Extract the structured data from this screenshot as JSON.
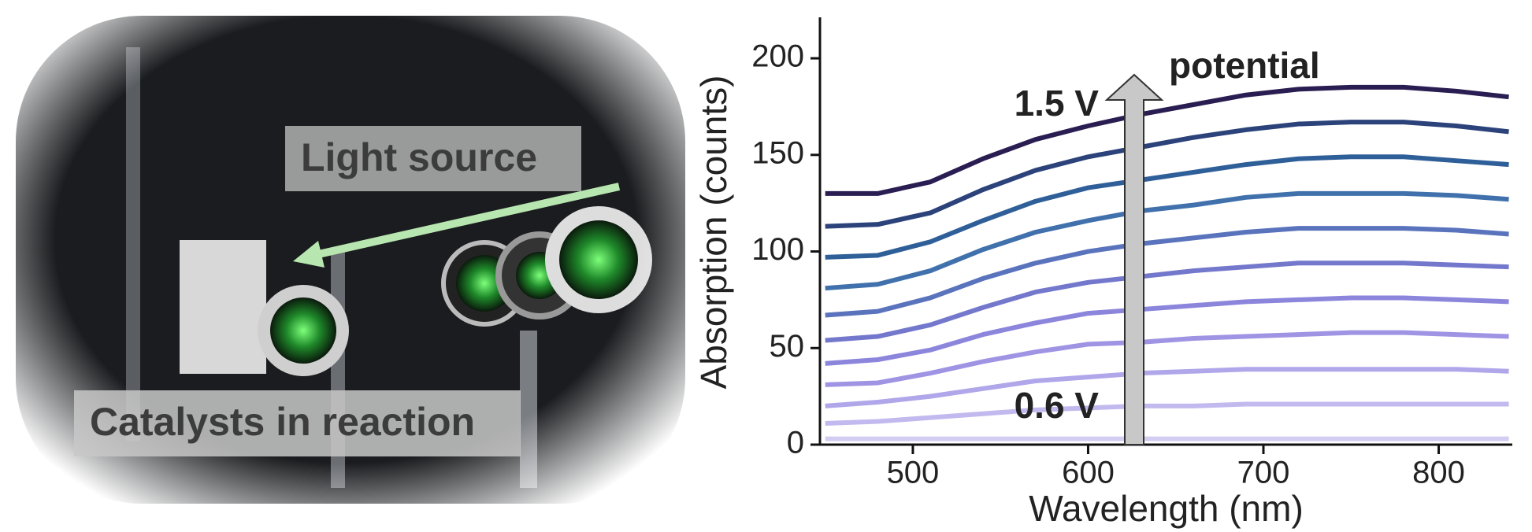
{
  "photo": {
    "labels": [
      "Light source",
      "Catalysts in reaction"
    ]
  },
  "chart_data": {
    "type": "line",
    "xlabel": "Wavelength (nm)",
    "ylabel": "Absorption (counts)",
    "annotations": [
      "potential",
      "1.5 V",
      "0.6 V"
    ],
    "xlim": [
      447,
      842
    ],
    "ylim": [
      0,
      220
    ],
    "xticks": [
      500,
      600,
      700,
      800
    ],
    "yticks": [
      0,
      50,
      100,
      150,
      200
    ],
    "grid": false,
    "x": [
      450,
      480,
      510,
      540,
      570,
      600,
      630,
      660,
      690,
      720,
      750,
      780,
      810,
      840
    ],
    "series": [
      {
        "color": "#d4cdf2",
        "values": [
          3,
          3,
          3,
          3,
          3,
          3,
          3,
          3,
          3,
          3,
          3,
          3,
          3,
          3
        ]
      },
      {
        "color": "#c2b9ee",
        "values": [
          11,
          12,
          14,
          16,
          18,
          19,
          20,
          20,
          21,
          21,
          21,
          21,
          21,
          21
        ]
      },
      {
        "color": "#b0a6ea",
        "values": [
          20,
          22,
          25,
          29,
          33,
          35,
          37,
          38,
          39,
          39,
          39,
          39,
          39,
          38
        ]
      },
      {
        "color": "#9f94e4",
        "values": [
          31,
          32,
          37,
          43,
          48,
          52,
          53,
          55,
          56,
          57,
          58,
          58,
          57,
          56
        ]
      },
      {
        "color": "#8c85dc",
        "values": [
          42,
          44,
          49,
          57,
          63,
          68,
          70,
          72,
          74,
          75,
          76,
          76,
          75,
          74
        ]
      },
      {
        "color": "#7478cc",
        "values": [
          54,
          56,
          62,
          71,
          79,
          84,
          87,
          90,
          92,
          94,
          94,
          94,
          93,
          92
        ]
      },
      {
        "color": "#5a73bd",
        "values": [
          67,
          69,
          76,
          86,
          94,
          100,
          104,
          107,
          110,
          112,
          112,
          112,
          111,
          109
        ]
      },
      {
        "color": "#4071ac",
        "values": [
          81,
          83,
          90,
          101,
          110,
          116,
          121,
          124,
          128,
          130,
          130,
          130,
          129,
          127
        ]
      },
      {
        "color": "#2f5f98",
        "values": [
          97,
          98,
          105,
          116,
          126,
          133,
          137,
          141,
          145,
          148,
          149,
          149,
          147,
          145
        ]
      },
      {
        "color": "#2b437a",
        "values": [
          113,
          114,
          120,
          132,
          142,
          149,
          154,
          159,
          163,
          166,
          167,
          167,
          165,
          162
        ]
      },
      {
        "color": "#2a1d52",
        "values": [
          130,
          130,
          136,
          148,
          158,
          165,
          171,
          176,
          181,
          184,
          185,
          185,
          183,
          180
        ]
      }
    ]
  }
}
